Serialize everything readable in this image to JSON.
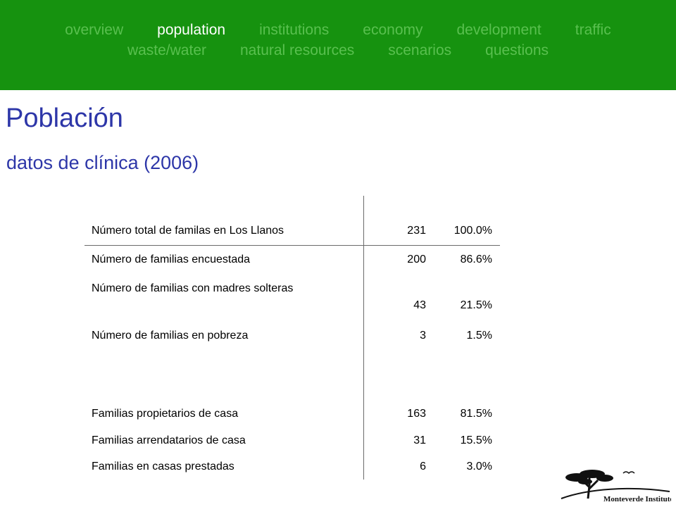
{
  "nav": {
    "row1": [
      "overview",
      "population",
      "institutions",
      "economy",
      "development",
      "traffic"
    ],
    "row2": [
      "waste/water",
      "natural resources",
      "scenarios",
      "questions"
    ],
    "active": "population"
  },
  "page": {
    "title": "Población",
    "subtitle": "datos de clínica (2006)"
  },
  "table": {
    "rows": [
      {
        "label": "Número total de familas en Los Llanos",
        "count": "231",
        "pct": "100.0%"
      },
      {
        "label": "Número de familias encuestada",
        "count": "200",
        "pct": "86.6%"
      },
      {
        "label": "Número de familias con madres solteras",
        "count": "43",
        "pct": "21.5%"
      },
      {
        "label": "Número de familias en pobreza",
        "count": "3",
        "pct": "1.5%"
      },
      {
        "label": "Familias propietarios de casa",
        "count": "163",
        "pct": "81.5%"
      },
      {
        "label": "Familias arrendatarios de casa",
        "count": "31",
        "pct": "15.5%"
      },
      {
        "label": "Familias en casas prestadas",
        "count": "6",
        "pct": "3.0%"
      }
    ]
  },
  "logo": {
    "text": "Monteverde Institute"
  }
}
